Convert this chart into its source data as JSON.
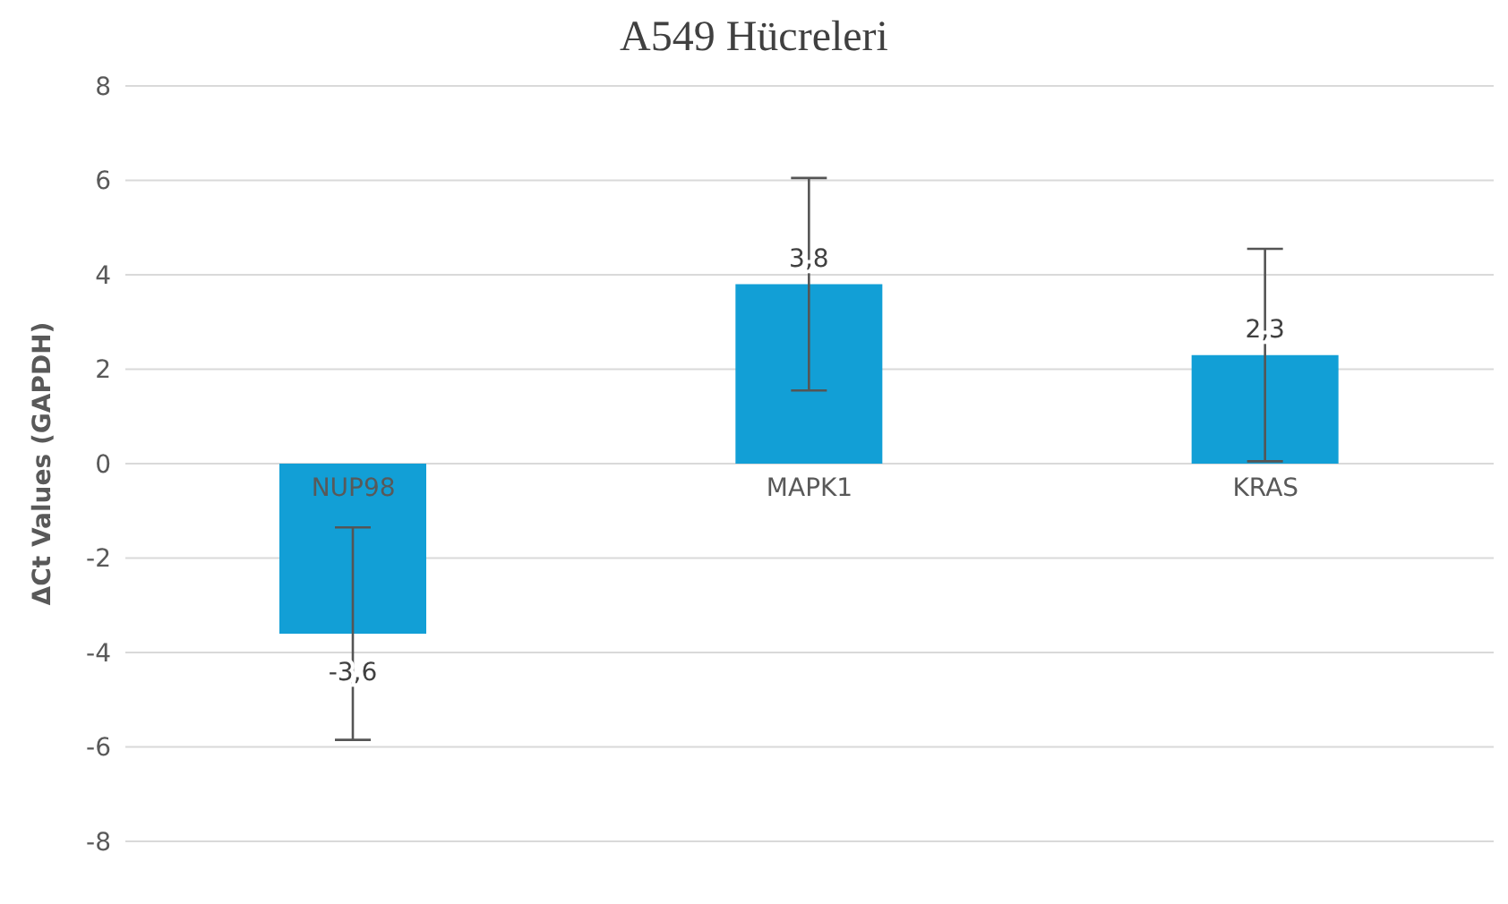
{
  "chart_data": {
    "type": "bar",
    "title": "A549 Hücreleri",
    "ylabel": "ΔCt Values  (GAPDH)",
    "categories": [
      "NUP98",
      "MAPK1",
      "KRAS"
    ],
    "values": [
      -3.6,
      3.8,
      2.3
    ],
    "value_labels": [
      "-3,6",
      "3,8",
      "2,3"
    ],
    "errors": [
      2.25,
      2.25,
      2.25
    ],
    "color": "#129fd6",
    "ylim": [
      -8,
      8
    ],
    "yticks": [
      -8,
      -6,
      -4,
      -2,
      0,
      2,
      4,
      6,
      8
    ],
    "grid": "y"
  }
}
